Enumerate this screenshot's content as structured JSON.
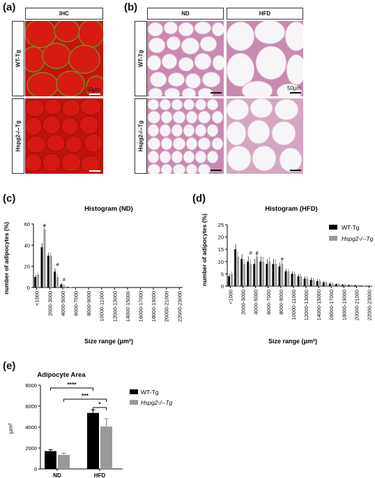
{
  "panels": {
    "a": {
      "label": "(a)",
      "header": "IHC",
      "rows": [
        "WT-Tg",
        "Hspg2-/--Tg"
      ],
      "scale": "50μm"
    },
    "b": {
      "label": "(b)",
      "headers": [
        "ND",
        "HFD"
      ],
      "rows": [
        "WT-Tg",
        "Hspg2-/--Tg"
      ],
      "scale": "50μm"
    },
    "c": {
      "label": "(c)"
    },
    "d": {
      "label": "(d)"
    },
    "e": {
      "label": "(e)"
    }
  },
  "colors": {
    "ihc_red": "#d41a12",
    "he_pink": "#d9a0c0",
    "wt": "#000000",
    "ko": "#9a9a9a"
  },
  "chart_data": [
    {
      "type": "bar",
      "title": "Histogram (ND)",
      "xlabel": "Size range (μm²)",
      "ylabel": "number of adipocytes (%)",
      "ylim": [
        0,
        60
      ],
      "yticks": [
        0,
        20,
        40,
        60
      ],
      "tick_labels": [
        "<1000",
        "2000-3000",
        "4000-5000",
        "6000-7000",
        "8000-9000",
        "10000-11000",
        "12000-13000",
        "14000-15000",
        "16000-17000",
        "18000-19000",
        "20000-21000",
        "22000-23000"
      ],
      "categories": [
        "<1000",
        "1000-2000",
        "2000-3000",
        "3000-4000",
        "4000-5000",
        "5000-6000",
        "6000-7000",
        "7000-8000",
        "8000-9000",
        "9000-10000",
        "10000-11000",
        "11000-12000",
        "12000-13000",
        "13000-14000",
        "14000-15000",
        "15000-16000",
        "16000-17000",
        "17000-18000",
        "18000-19000",
        "19000-20000",
        "20000-21000",
        "21000-22000",
        "22000-23000"
      ],
      "series": [
        {
          "name": "WT-Tg",
          "values": [
            10,
            38,
            30,
            15,
            3,
            0.5,
            0,
            0,
            0,
            0,
            0,
            0,
            0,
            0,
            0,
            0,
            0,
            0,
            0,
            0,
            0,
            0,
            0
          ],
          "errors": [
            2,
            4,
            3,
            3,
            1,
            0.3,
            0,
            0,
            0,
            0,
            0,
            0,
            0,
            0,
            0,
            0,
            0,
            0,
            0,
            0,
            0,
            0,
            0
          ]
        },
        {
          "name": "Hspg2-/--Tg",
          "values": [
            12,
            55,
            30,
            10,
            2,
            0.3,
            0,
            0,
            0,
            0,
            0,
            0,
            0,
            0,
            0,
            0,
            0,
            0,
            0,
            0,
            0,
            0,
            0
          ]
        }
      ],
      "annotations": [
        {
          "category": "1000-2000",
          "text": "#"
        },
        {
          "category": "3000-4000",
          "text": "#"
        },
        {
          "category": "4000-5000",
          "text": "#"
        }
      ]
    },
    {
      "type": "bar",
      "title": "Histogram (HFD)",
      "xlabel": "Size range (μm²)",
      "ylabel": "number of adipocytes (%)",
      "ylim": [
        0,
        25
      ],
      "yticks": [
        0,
        5,
        10,
        15,
        20,
        25
      ],
      "legend": "top-right",
      "tick_labels": [
        "<1000",
        "2000-3000",
        "4000-5000",
        "6000-7000",
        "8000-9000",
        "10000-11000",
        "12000-13000",
        "14000-15000",
        "16000-17000",
        "18000-19000",
        "20000-21000",
        "22000-23000"
      ],
      "categories": [
        "<1000",
        "1000-2000",
        "2000-3000",
        "3000-4000",
        "4000-5000",
        "5000-6000",
        "6000-7000",
        "7000-8000",
        "8000-9000",
        "9000-10000",
        "10000-11000",
        "11000-12000",
        "12000-13000",
        "13000-14000",
        "14000-15000",
        "15000-16000",
        "16000-17000",
        "17000-18000",
        "18000-19000",
        "19000-20000",
        "20000-21000",
        "21000-22000",
        "22000-23000"
      ],
      "series": [
        {
          "name": "WT-Tg",
          "values": [
            4,
            15,
            11,
            10,
            9,
            10,
            9,
            9,
            8,
            6,
            5,
            4,
            3,
            2.5,
            2,
            1.5,
            1,
            0.8,
            0.6,
            0.4,
            0.3,
            0.2,
            0.1
          ],
          "errors": [
            1,
            2,
            2,
            2,
            2,
            2,
            2,
            2,
            1.5,
            1,
            1,
            1,
            1,
            1,
            0.8,
            0.6,
            0.5,
            0.4,
            0.3,
            0.2,
            0.2,
            0.1,
            0.1
          ]
        },
        {
          "name": "Hspg2-/--Tg",
          "values": [
            5,
            12,
            9,
            9,
            12,
            10,
            10,
            9,
            9,
            6,
            5,
            4,
            3,
            2.5,
            2,
            1.5,
            1,
            0.8,
            0.6,
            0.4,
            0.3,
            0.2,
            0.1
          ]
        }
      ],
      "annotations": [
        {
          "category": "3000-4000",
          "text": "#"
        },
        {
          "category": "4000-5000",
          "text": "#"
        },
        {
          "category": "8000-9000",
          "text": "#"
        }
      ]
    },
    {
      "type": "bar",
      "title": "Adipocyte Area",
      "ylabel": "μm²",
      "ylim": [
        0,
        8000
      ],
      "yticks": [
        0,
        2000,
        4000,
        6000,
        8000
      ],
      "legend": "right",
      "categories": [
        "ND",
        "HFD"
      ],
      "series": [
        {
          "name": "WT-Tg",
          "values": [
            1700,
            5350
          ],
          "errors": [
            150,
            300
          ]
        },
        {
          "name": "Hspg2-/--Tg",
          "values": [
            1350,
            4050
          ],
          "errors": [
            150,
            750
          ]
        }
      ],
      "significance": [
        "****",
        "***",
        "*"
      ]
    }
  ]
}
